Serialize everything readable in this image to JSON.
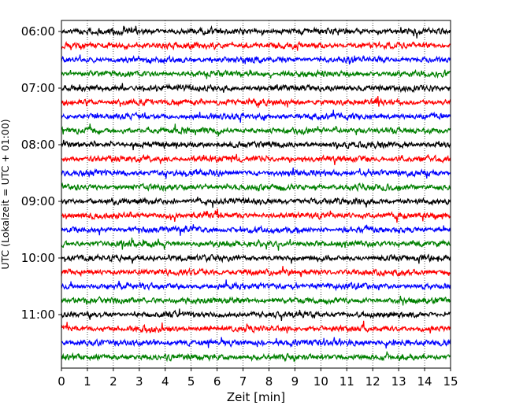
{
  "chart_data": {
    "type": "line",
    "xlabel": "Zeit  [min]",
    "ylabel": "UTC (Lokalzeit = UTC + 01:00)",
    "xlim": [
      0,
      15
    ],
    "x_ticks": [
      0,
      1,
      2,
      3,
      4,
      5,
      6,
      7,
      8,
      9,
      10,
      11,
      12,
      13,
      14,
      15
    ],
    "y_tick_labels": [
      "06:00",
      "07:00",
      "08:00",
      "09:00",
      "10:00",
      "11:00"
    ],
    "trace_hours_utc": [
      "06:00",
      "06:15",
      "06:30",
      "06:45",
      "07:00",
      "07:15",
      "07:30",
      "07:45",
      "08:00",
      "08:15",
      "08:30",
      "08:45",
      "09:00",
      "09:15",
      "09:30",
      "09:45",
      "10:00",
      "10:15",
      "10:30",
      "10:45",
      "11:00",
      "11:15",
      "11:30",
      "11:45"
    ],
    "trace_colors": [
      "#000000",
      "#ff0000",
      "#0000ff",
      "#008000"
    ],
    "grid": "vertical dotted"
  }
}
